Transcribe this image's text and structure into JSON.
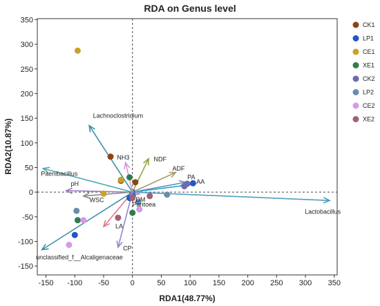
{
  "chart_data": {
    "type": "scatter",
    "title": "RDA on Genus level",
    "xlabel": "RDA1(48.77%)",
    "ylabel": "RDA2(10.87%)",
    "xlim": [
      -165,
      355
    ],
    "ylim": [
      -168,
      352
    ],
    "x_ticks": [
      "-150",
      "-100",
      "-50",
      "0",
      "50",
      "100",
      "150",
      "200",
      "250",
      "300",
      "350"
    ],
    "x_tick_values": [
      -150,
      -100,
      -50,
      0,
      50,
      100,
      150,
      200,
      250,
      300,
      350
    ],
    "y_ticks": [
      "-150",
      "-100",
      "-50",
      "0",
      "50",
      "100",
      "150",
      "200",
      "250",
      "300",
      "350"
    ],
    "y_tick_values": [
      -150,
      -100,
      -50,
      0,
      50,
      100,
      150,
      200,
      250,
      300,
      350
    ],
    "legend_position": "right",
    "series": [
      {
        "name": "CK1",
        "color": "#8B4513",
        "points": [
          [
            -38,
            72
          ],
          [
            -20,
            23
          ],
          [
            5,
            20
          ]
        ]
      },
      {
        "name": "LP1",
        "color": "#2155C9",
        "points": [
          [
            -5,
            -12
          ],
          [
            -100,
            -87
          ],
          [
            105,
            18
          ]
        ]
      },
      {
        "name": "CE1",
        "color": "#C9A227",
        "points": [
          [
            -95,
            287
          ],
          [
            -50,
            -3
          ],
          [
            -20,
            25
          ]
        ]
      },
      {
        "name": "XE1",
        "color": "#2E7D4F",
        "points": [
          [
            -95,
            -57
          ],
          [
            -5,
            30
          ],
          [
            0,
            -42
          ]
        ]
      },
      {
        "name": "CK2",
        "color": "#6F6AB0",
        "points": [
          [
            90,
            12
          ],
          [
            95,
            17
          ],
          [
            0,
            -10
          ]
        ]
      },
      {
        "name": "LP2",
        "color": "#6A8CAF",
        "points": [
          [
            -97,
            -38
          ],
          [
            60,
            -5
          ],
          [
            10,
            -20
          ]
        ]
      },
      {
        "name": "CE2",
        "color": "#D59AE8",
        "points": [
          [
            -110,
            -107
          ],
          [
            -85,
            -57
          ],
          [
            12,
            -35
          ]
        ]
      },
      {
        "name": "XE2",
        "color": "#A0607A",
        "points": [
          [
            -25,
            -52
          ],
          [
            30,
            -8
          ],
          [
            0,
            -12
          ]
        ]
      }
    ],
    "vectors": [
      {
        "name": "Lactobacillus",
        "x": 342,
        "y": -17,
        "color": "#4F9FBF",
        "label_x": 330,
        "label_y": -40
      },
      {
        "name": "Lachnoclostridium",
        "x": -75,
        "y": 135,
        "color": "#3F8FA8",
        "label_x": -25,
        "label_y": 155
      },
      {
        "name": "unclassified_f__Alcaligenaceae",
        "x": -157,
        "y": -117,
        "color": "#3F8FA8",
        "label_x": -92,
        "label_y": -132
      },
      {
        "name": "Paenibacillus",
        "x": -155,
        "y": 48,
        "color": "#4FA8B8",
        "label_x": -127,
        "label_y": 37
      },
      {
        "name": "pH",
        "x": -115,
        "y": 3,
        "color": "#A07CBF",
        "label_x": -100,
        "label_y": 17
      },
      {
        "name": "WSC",
        "x": -85,
        "y": -8,
        "color": "#8A8A8A",
        "label_x": -62,
        "label_y": -16
      },
      {
        "name": "NH3",
        "x": -12,
        "y": 60,
        "color": "#D39AD8",
        "label_x": -16,
        "label_y": 70
      },
      {
        "name": "NDF",
        "x": 28,
        "y": 68,
        "color": "#8DA844",
        "label_x": 48,
        "label_y": 67
      },
      {
        "name": "ADF",
        "x": 75,
        "y": 40,
        "color": "#A89A6A",
        "label_x": 80,
        "label_y": 48
      },
      {
        "name": "PA",
        "x": 92,
        "y": 20,
        "color": "#5F8FBF",
        "label_x": 102,
        "label_y": 30
      },
      {
        "name": "AA",
        "x": 100,
        "y": 15,
        "color": "#2FA0C8",
        "label_x": 118,
        "label_y": 21
      },
      {
        "name": "DM",
        "x": 12,
        "y": -4,
        "color": "#C48AD0",
        "label_x": 14,
        "label_y": -15
      },
      {
        "name": "Pantoea",
        "x": 5,
        "y": -8,
        "color": "#2F6AB0",
        "label_x": 20,
        "label_y": -25
      },
      {
        "name": "LA",
        "x": -50,
        "y": -70,
        "color": "#E07A8A",
        "label_x": -23,
        "label_y": -69
      },
      {
        "name": "CP",
        "x": -25,
        "y": -112,
        "color": "#8F8AD0",
        "label_x": -9,
        "label_y": -114
      }
    ]
  }
}
